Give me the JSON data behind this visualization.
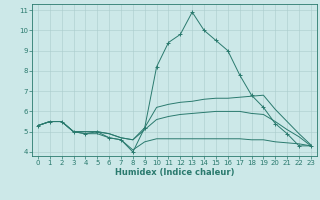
{
  "xlabel": "Humidex (Indice chaleur)",
  "x": [
    0,
    1,
    2,
    3,
    4,
    5,
    6,
    7,
    8,
    9,
    10,
    11,
    12,
    13,
    14,
    15,
    16,
    17,
    18,
    19,
    20,
    21,
    22,
    23
  ],
  "y_peak": [
    5.3,
    5.5,
    5.5,
    5.0,
    4.9,
    5.0,
    4.7,
    4.6,
    4.0,
    5.2,
    8.2,
    9.4,
    9.8,
    10.9,
    10.0,
    9.5,
    9.0,
    7.8,
    6.8,
    6.2,
    5.4,
    4.9,
    4.3,
    4.3
  ],
  "y_upper": [
    5.3,
    5.5,
    5.5,
    5.0,
    5.0,
    5.0,
    4.9,
    4.7,
    4.6,
    5.2,
    6.2,
    6.35,
    6.45,
    6.5,
    6.6,
    6.65,
    6.65,
    6.7,
    6.75,
    6.8,
    6.1,
    5.5,
    4.9,
    4.35
  ],
  "y_lower": [
    5.3,
    5.5,
    5.5,
    5.0,
    5.0,
    5.0,
    4.9,
    4.7,
    4.6,
    5.1,
    5.6,
    5.75,
    5.85,
    5.9,
    5.95,
    6.0,
    6.0,
    6.0,
    5.9,
    5.85,
    5.5,
    5.1,
    4.75,
    4.3
  ],
  "y_min": [
    5.3,
    5.5,
    5.5,
    5.0,
    4.9,
    4.9,
    4.7,
    4.6,
    4.1,
    4.5,
    4.65,
    4.65,
    4.65,
    4.65,
    4.65,
    4.65,
    4.65,
    4.65,
    4.6,
    4.6,
    4.5,
    4.45,
    4.4,
    4.3
  ],
  "line_color": "#2a7a6e",
  "bg_color": "#cce8e8",
  "grid_color": "#aacccc",
  "ylim": [
    3.8,
    11.3
  ],
  "xlim": [
    -0.5,
    23.5
  ],
  "yticks": [
    4,
    5,
    6,
    7,
    8,
    9,
    10,
    11
  ],
  "xticks": [
    0,
    1,
    2,
    3,
    4,
    5,
    6,
    7,
    8,
    9,
    10,
    11,
    12,
    13,
    14,
    15,
    16,
    17,
    18,
    19,
    20,
    21,
    22,
    23
  ],
  "xlabel_fontsize": 6.0,
  "tick_fontsize": 5.0,
  "linewidth": 0.7,
  "marker": "+",
  "markersize": 3.0
}
